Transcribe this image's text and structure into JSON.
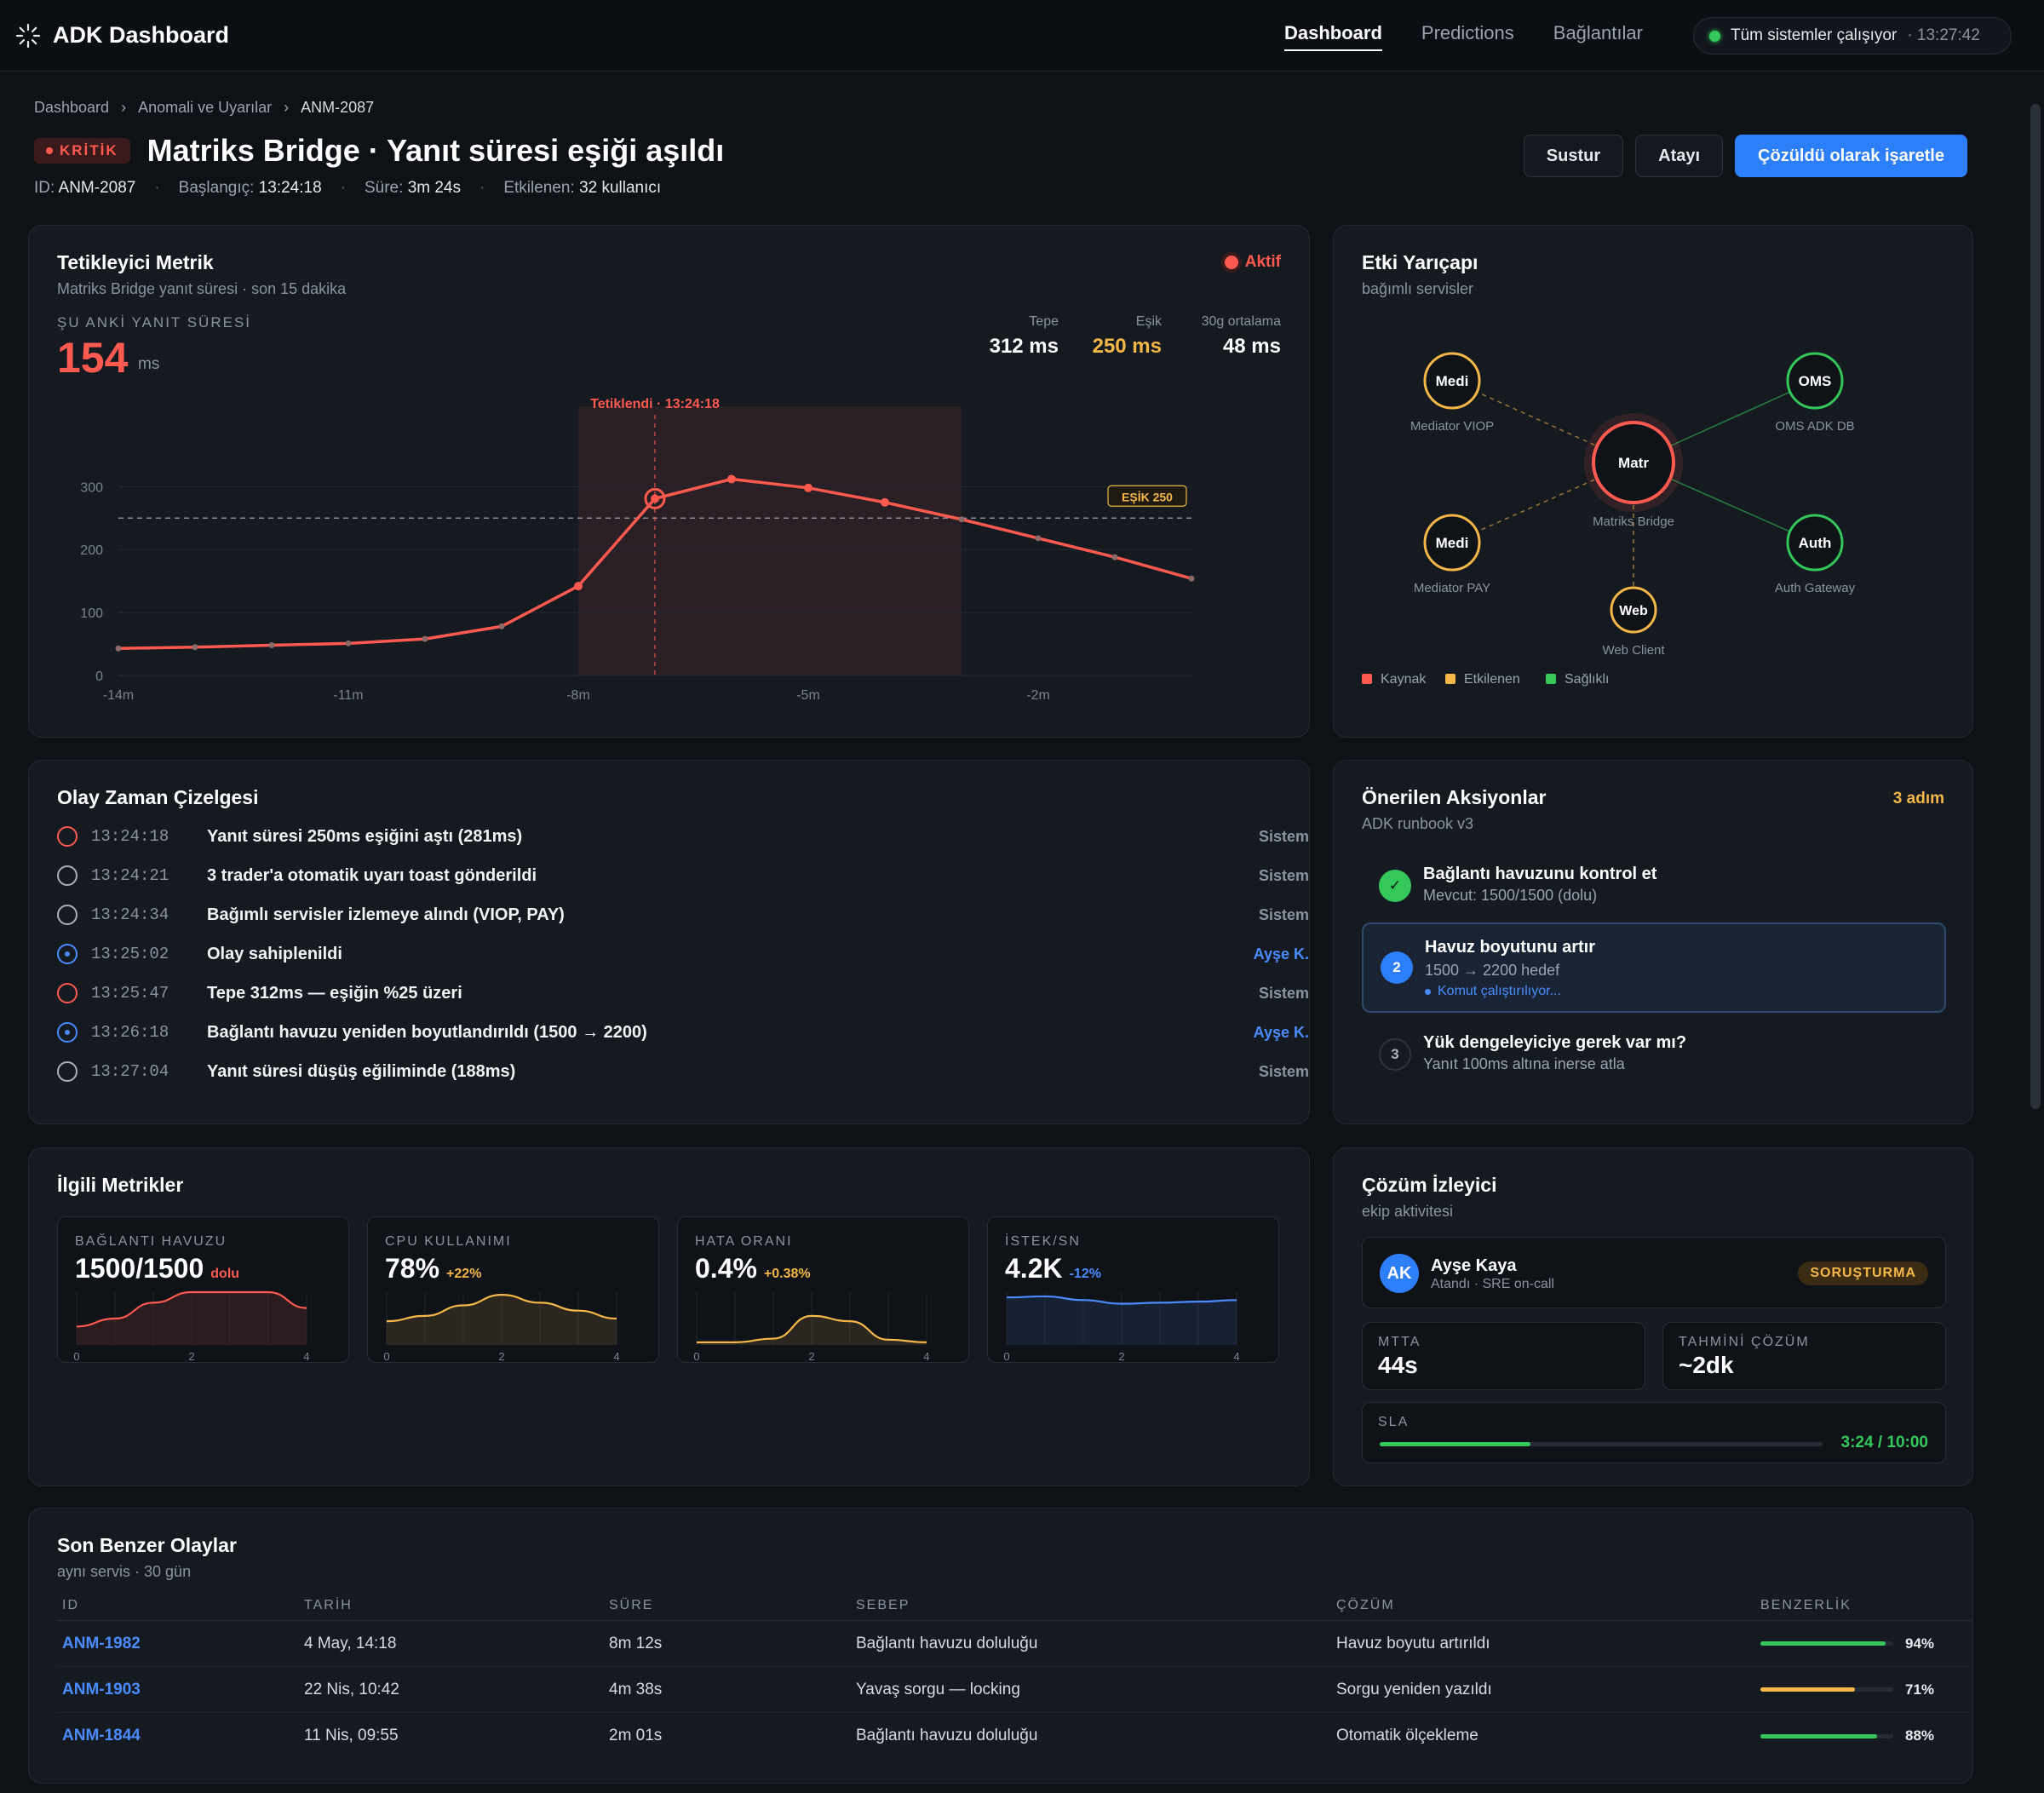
{
  "app": {
    "title": "ADK Dashboard"
  },
  "nav": [
    {
      "label": "Dashboard",
      "active": true
    },
    {
      "label": "Predictions",
      "active": false
    },
    {
      "label": "Bağlantılar",
      "active": false
    }
  ],
  "status": {
    "text": "Tüm sistemler çalışıyor",
    "time": "· 13:27:42"
  },
  "breadcrumb": {
    "items": [
      "Dashboard",
      "Anomali ve Uyarılar"
    ],
    "separator": "›",
    "current": "ANM-2087"
  },
  "incident": {
    "severity": "KRİTİK",
    "title": "Matriks Bridge · Yanıt süresi eşiği aşıldı",
    "meta": [
      {
        "label": "ID:",
        "value": "ANM-2087"
      },
      {
        "label": "Başlangıç:",
        "value": "13:24:18"
      },
      {
        "label": "Süre:",
        "value": "3m 24s"
      },
      {
        "label": "Etkilenen:",
        "value": "32 kullanıcı"
      }
    ],
    "meta_separator": "·"
  },
  "actions": {
    "mute": "Sustur",
    "assign": "Atayı",
    "resolve": "Çözüldü olarak işaretle"
  },
  "trigger": {
    "title": "Tetikleyici Metrik",
    "subtitle": "Matriks Bridge yanıt süresi · son 15 dakika",
    "status": "Aktif",
    "current_label": "ŞU ANKİ YANIT SÜRESİ",
    "current_value": "154",
    "current_unit": "ms",
    "stats": [
      {
        "label": "Tepe",
        "value": "312 ms",
        "warn": false
      },
      {
        "label": "Eşik",
        "value": "250 ms",
        "warn": true
      },
      {
        "label": "30g ortalama",
        "value": "48 ms",
        "warn": false
      }
    ]
  },
  "chart_data": {
    "type": "line",
    "title": "",
    "xlabel": "",
    "ylabel": "",
    "x": [
      -14,
      -13,
      -12,
      -11,
      -10,
      -9,
      -8,
      -7,
      -6,
      -5,
      -4,
      -3,
      -2,
      -1,
      0
    ],
    "series": [
      {
        "name": "",
        "values": [
          43,
          45,
          48,
          51,
          58,
          78,
          142,
          281,
          312,
          298,
          275,
          248,
          218,
          188,
          154
        ],
        "color": "#ff5a4f"
      }
    ],
    "xticks": [
      -14,
      -11,
      -8,
      -5,
      -2
    ],
    "xtick_labels": [
      "-14m",
      "-11m",
      "-8m",
      "-5m",
      "-2m"
    ],
    "yticks": [
      0,
      100,
      200,
      300
    ],
    "xlim": [
      -14,
      0
    ],
    "ylim": [
      0,
      360
    ],
    "threshold": {
      "value": 250,
      "label": "EŞİK 250"
    },
    "trigger_marker": {
      "x": -7,
      "label": "Tetiklendi · 13:24:18"
    },
    "highlight_range": [
      -8,
      -3
    ],
    "grid": true
  },
  "blast": {
    "title": "Etki Yarıçapı",
    "subtitle": "bağımlı servisler",
    "center": {
      "short": "Matr",
      "name": "Matriks Bridge",
      "status": "source"
    },
    "nodes": [
      {
        "short": "Medi",
        "name": "Mediator VIOP",
        "status": "affected"
      },
      {
        "short": "OMS",
        "name": "OMS ADK DB",
        "status": "healthy"
      },
      {
        "short": "Medi",
        "name": "Mediator PAY",
        "status": "affected"
      },
      {
        "short": "Auth",
        "name": "Auth Gateway",
        "status": "healthy"
      },
      {
        "short": "Web",
        "name": "Web Client",
        "status": "affected"
      }
    ],
    "legend": [
      {
        "label": "Kaynak",
        "color": "#ff5a4f"
      },
      {
        "label": "Etkilenen",
        "color": "#f5b748"
      },
      {
        "label": "Sağlıklı",
        "color": "#34c759"
      }
    ]
  },
  "timeline": {
    "title": "Olay Zaman Çizelgesi",
    "events": [
      {
        "time": "13:24:18",
        "text": "Yanıt süresi 250ms eşiğini aştı (281ms)",
        "actor": "Sistem",
        "kind": "red"
      },
      {
        "time": "13:24:21",
        "text": "3 trader'a otomatik uyarı toast gönderildi",
        "actor": "Sistem",
        "kind": "gray"
      },
      {
        "time": "13:24:34",
        "text": "Bağımlı servisler izlemeye alındı (VIOP, PAY)",
        "actor": "Sistem",
        "kind": "gray"
      },
      {
        "time": "13:25:02",
        "text": "Olay sahiplenildi",
        "actor": "Ayşe K.",
        "kind": "blue"
      },
      {
        "time": "13:25:47",
        "text": "Tepe 312ms — eşiğin %25 üzeri",
        "actor": "Sistem",
        "kind": "red"
      },
      {
        "time": "13:26:18",
        "text": "Bağlantı havuzu yeniden boyutlandırıldı (1500 → 2200)",
        "actor": "Ayşe K.",
        "kind": "blue"
      },
      {
        "time": "13:27:04",
        "text": "Yanıt süresi düşüş eğiliminde (188ms)",
        "actor": "Sistem",
        "kind": "gray"
      }
    ]
  },
  "suggested": {
    "title": "Önerilen Aksiyonlar",
    "subtitle": "ADK runbook v3",
    "count": "3 adım",
    "steps": [
      {
        "num": "✓",
        "title": "Bağlantı havuzunu kontrol et",
        "sub": "Mevcut: 1500/1500 (dolu)",
        "state": "done"
      },
      {
        "num": "2",
        "title": "Havuz boyutunu artır",
        "sub": "1500 → 2200 hedef",
        "running": "Komut çalıştırılıyor...",
        "state": "active"
      },
      {
        "num": "3",
        "title": "Yük dengeleyiciye gerek var mı?",
        "sub": "Yanıt 100ms altına inerse atla",
        "state": "todo"
      }
    ]
  },
  "related": {
    "title": "İlgili Metrikler",
    "metrics": [
      {
        "label": "BAĞLANTI HAVUZU",
        "value": "1500/1500",
        "delta": "dolu",
        "color": "#ff5a4f",
        "points": [
          0.35,
          0.5,
          0.8,
          1.0,
          1.0,
          1.0,
          0.7
        ],
        "ticks": [
          "0",
          "2",
          "4"
        ]
      },
      {
        "label": "CPU KULLANIMI",
        "value": "78%",
        "delta": "+22%",
        "color": "#f5b748",
        "points": [
          0.45,
          0.55,
          0.75,
          0.95,
          0.8,
          0.65,
          0.5
        ],
        "ticks": [
          "0",
          "2",
          "4"
        ]
      },
      {
        "label": "HATA ORANI",
        "value": "0.4%",
        "delta": "+0.38%",
        "color": "#f5b748",
        "points": [
          0.05,
          0.05,
          0.12,
          0.55,
          0.45,
          0.1,
          0.05
        ],
        "ticks": [
          "0",
          "2",
          "4"
        ]
      },
      {
        "label": "İSTEK/SN",
        "value": "4.2K",
        "delta": "-12%",
        "color": "#4a8cff",
        "points": [
          0.9,
          0.92,
          0.85,
          0.78,
          0.8,
          0.82,
          0.85
        ],
        "ticks": [
          "0",
          "2",
          "4"
        ]
      }
    ]
  },
  "resolution": {
    "title": "Çözüm İzleyici",
    "subtitle": "ekip aktivitesi",
    "owner": {
      "initials": "AK",
      "name": "Ayşe Kaya",
      "role": "Atandı · SRE on-call",
      "badge": "SORUŞTURMA"
    },
    "kpis": [
      {
        "label": "MTTA",
        "value": "44s"
      },
      {
        "label": "TAHMİNİ ÇÖZÜM",
        "value": "~2dk"
      }
    ],
    "sla": {
      "label": "SLA",
      "value": "3:24 / 10:00",
      "progress": 0.34
    }
  },
  "similar": {
    "title": "Son Benzer Olaylar",
    "subtitle": "aynı servis · 30 gün",
    "columns": [
      "ID",
      "TARİH",
      "SÜRE",
      "SEBEP",
      "ÇÖZÜM",
      "BENZERLİK"
    ],
    "rows": [
      {
        "id": "ANM-1982",
        "date": "4 May, 14:18",
        "duration": "8m 12s",
        "cause": "Bağlantı havuzu doluluğu",
        "fix": "Havuz boyutu artırıldı",
        "similarity": "94%",
        "sim_value": 0.94,
        "color": "#34c759"
      },
      {
        "id": "ANM-1903",
        "date": "22 Nis, 10:42",
        "duration": "4m 38s",
        "cause": "Yavaş sorgu — locking",
        "fix": "Sorgu yeniden yazıldı",
        "similarity": "71%",
        "sim_value": 0.71,
        "color": "#f5b748"
      },
      {
        "id": "ANM-1844",
        "date": "11 Nis, 09:55",
        "duration": "2m 01s",
        "cause": "Bağlantı havuzu doluluğu",
        "fix": "Otomatik ölçekleme",
        "similarity": "88%",
        "sim_value": 0.88,
        "color": "#34c759"
      }
    ]
  }
}
